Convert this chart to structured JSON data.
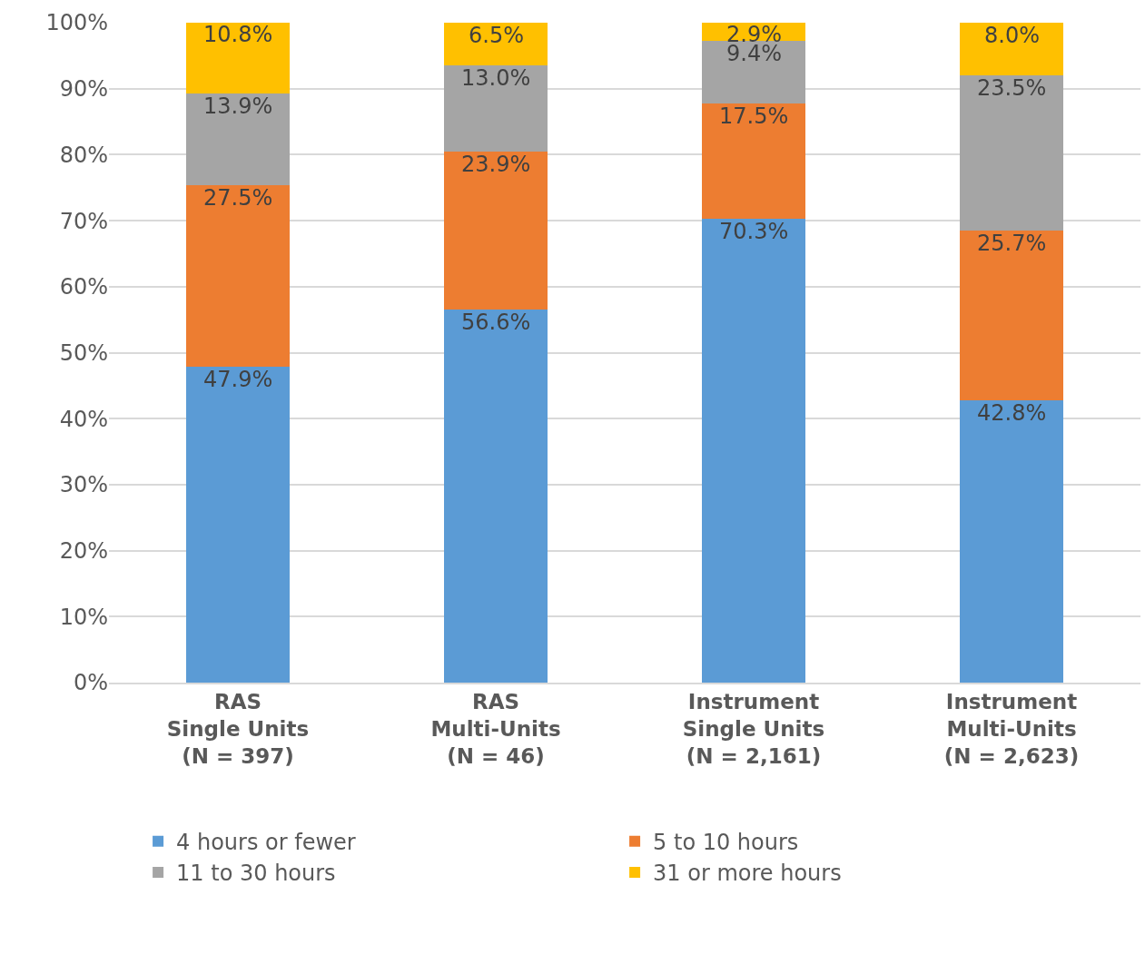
{
  "chart_data": {
    "type": "bar",
    "stacked": true,
    "categories": [
      "RAS\nSingle Units\n(N = 397)",
      "RAS\nMulti-Units\n(N = 46)",
      "Instrument\nSingle Units\n(N = 2,161)",
      "Instrument\nMulti-Units\n(N = 2,623)"
    ],
    "series": [
      {
        "name": "4 hours or fewer",
        "color": "#5b9bd5",
        "values": [
          47.9,
          56.6,
          70.3,
          42.8
        ],
        "value_labels": [
          "47.9%",
          "56.6%",
          "70.3%",
          "42.8%"
        ]
      },
      {
        "name": "5 to 10 hours",
        "color": "#ed7d31",
        "values": [
          27.5,
          23.9,
          17.5,
          25.7
        ],
        "value_labels": [
          "27.5%",
          "23.9%",
          "17.5%",
          "25.7%"
        ]
      },
      {
        "name": "11 to 30 hours",
        "color": "#a5a5a5",
        "values": [
          13.9,
          13.0,
          9.4,
          23.5
        ],
        "value_labels": [
          "13.9%",
          "13.0%",
          "9.4%",
          "23.5%"
        ]
      },
      {
        "name": "31 or more hours",
        "color": "#ffc000",
        "values": [
          10.8,
          6.5,
          2.9,
          8.0
        ],
        "value_labels": [
          "10.8%",
          "6.5%",
          "2.9%",
          "8.0%"
        ]
      }
    ],
    "ylim": [
      0,
      100
    ],
    "yticks": [
      {
        "value": 0,
        "label": "0%"
      },
      {
        "value": 10,
        "label": "10%"
      },
      {
        "value": 20,
        "label": "20%"
      },
      {
        "value": 30,
        "label": "30%"
      },
      {
        "value": 40,
        "label": "40%"
      },
      {
        "value": 50,
        "label": "50%"
      },
      {
        "value": 60,
        "label": "60%"
      },
      {
        "value": 70,
        "label": "70%"
      },
      {
        "value": 80,
        "label": "80%"
      },
      {
        "value": 90,
        "label": "90%"
      },
      {
        "value": 100,
        "label": "100%"
      }
    ],
    "grid": "y",
    "legend": "bottom"
  }
}
